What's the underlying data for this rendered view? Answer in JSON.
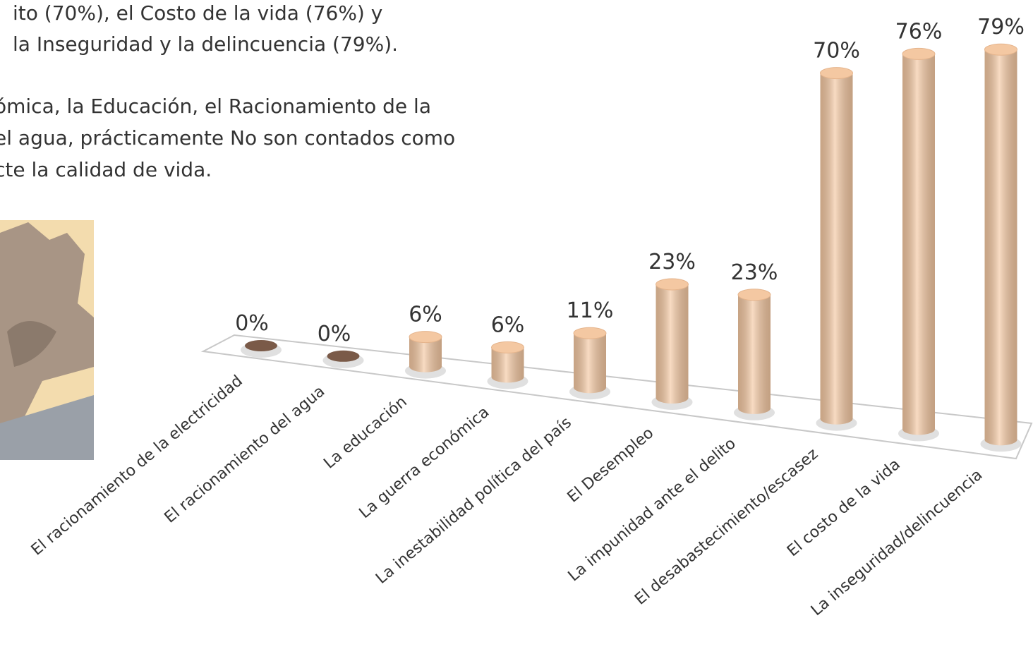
{
  "text_lines": [
    "ito (70%), el Costo de la vida (76%) y",
    "la Inseguridad y la delincuencia (79%).",
    "ómica, la Educación, el Racionamiento de la",
    "el agua, prácticamente No son contados como",
    "cte la calidad de vida."
  ],
  "chart_data": {
    "type": "bar",
    "categories": [
      "El racionamiento de la electricidad",
      "El racionamiento del agua",
      "La educación",
      "La guerra económica",
      "La inestabilidad política del país",
      "El Desempleo",
      "La impunidad ante el delito",
      "El desabastecimiento/escasez",
      "El costo de la vida",
      "La inseguridad/delincuencia"
    ],
    "values": [
      0,
      0,
      6,
      6,
      11,
      23,
      23,
      70,
      76,
      79
    ],
    "value_labels": [
      "0%",
      "0%",
      "6%",
      "6%",
      "11%",
      "23%",
      "23%",
      "70%",
      "76%",
      "79%"
    ],
    "color": "#f4c8a2"
  }
}
